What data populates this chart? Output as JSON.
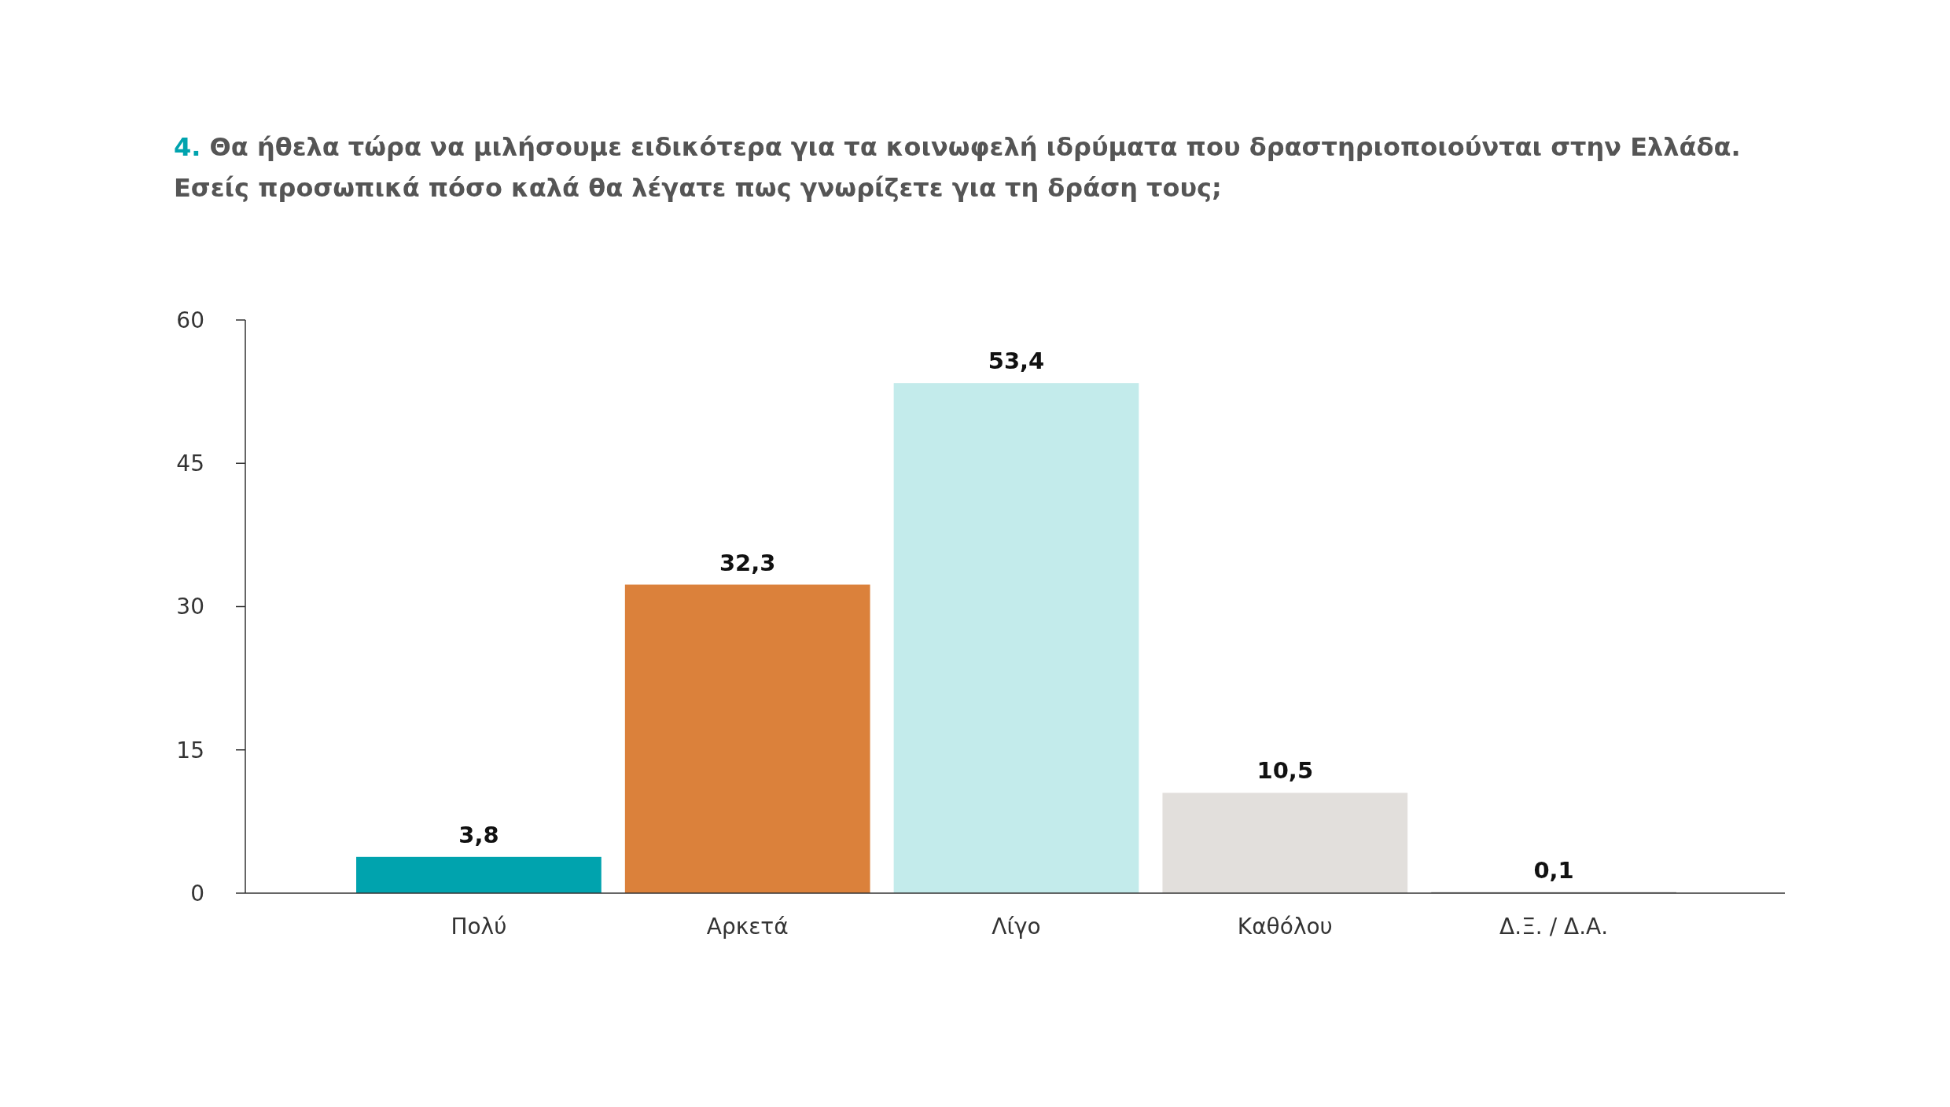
{
  "chart_data": {
    "type": "bar",
    "title": "4. Θα ήθελα τώρα να μιλήσουμε ειδικότερα για τα κοινωφελή ιδρύματα που δραστηριοποιούνται στην Ελλάδα.\nΕσείς προσωπικά πόσο καλά θα λέγατε πως γνωρίζετε για τη δράση τους;",
    "categories": [
      "Πολύ",
      "Αρκετά",
      "Λίγο",
      "Καθόλου",
      "Δ.Ξ. / Δ.Α."
    ],
    "values": [
      3.8,
      32.3,
      53.4,
      10.5,
      0.1
    ],
    "colors": [
      "#00a3ae",
      "#db813b",
      "#c3ebeb",
      "#e2dfdc",
      "#8a8a8a"
    ],
    "value_labels": [
      "3,8",
      "32,3",
      "53,4",
      "10,5",
      "0,1"
    ],
    "ylim": [
      0,
      60
    ],
    "yticks": [
      0,
      15,
      30,
      45,
      60
    ]
  }
}
